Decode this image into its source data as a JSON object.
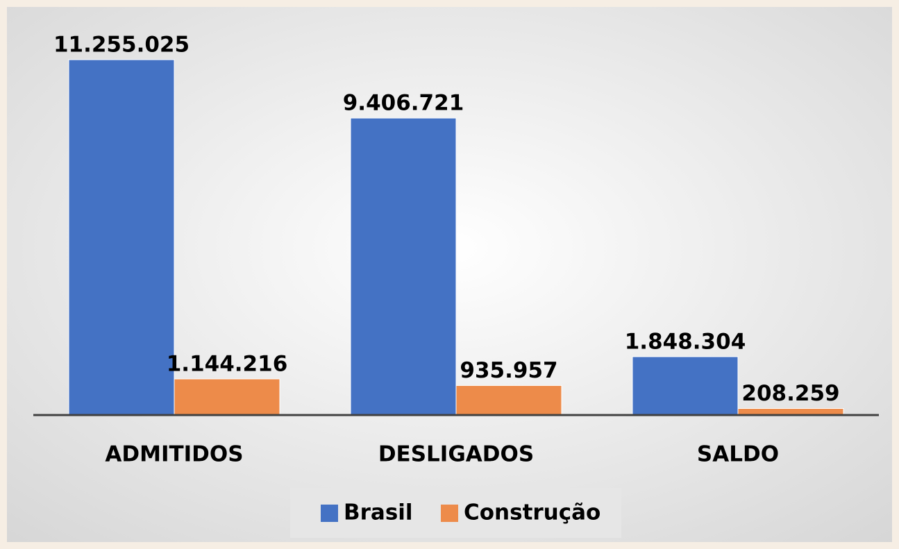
{
  "chart_data": {
    "type": "bar",
    "categories": [
      "ADMITIDOS",
      "DESLIGADOS",
      "SALDO"
    ],
    "series": [
      {
        "name": "Brasil",
        "color": "#4472c4",
        "values": [
          11255025,
          9406721,
          1848304
        ],
        "value_labels": [
          "11.255.025",
          "9.406.721",
          "1.848.304"
        ]
      },
      {
        "name": "Construção",
        "color": "#ed8b4a",
        "values": [
          1144216,
          935957,
          208259
        ],
        "value_labels": [
          "1.144.216",
          "935.957",
          "208.259"
        ]
      }
    ],
    "legend": "bottom"
  }
}
